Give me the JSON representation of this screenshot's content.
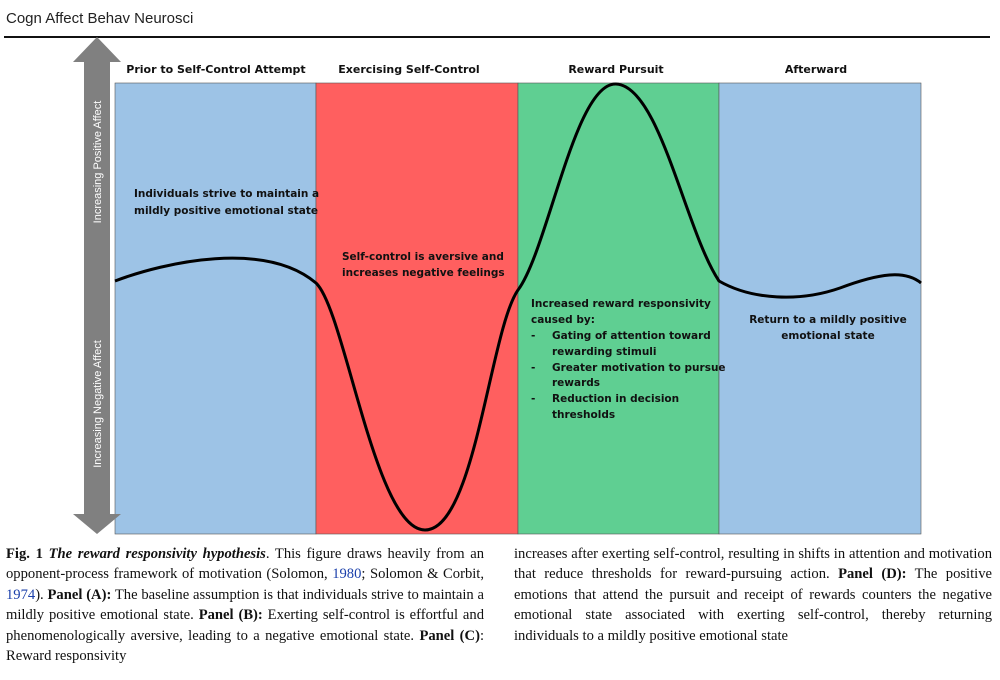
{
  "header": {
    "journal": "Cogn Affect Behav Neurosci"
  },
  "figure": {
    "axis": {
      "positive": "Increasing Positive Affect",
      "negative": "Increasing Negative Affect"
    },
    "panels": [
      {
        "title": "Prior to Self-Control Attempt",
        "color": "#9dc3e6",
        "text": [
          "Individuals strive to maintain a",
          "mildly positive emotional state"
        ]
      },
      {
        "title": "Exercising Self-Control",
        "color": "#ff5f5f",
        "text": [
          "Self-control is aversive and",
          "increases negative feelings"
        ]
      },
      {
        "title": "Reward Pursuit",
        "color": "#5fcf92",
        "text": [
          "Increased reward responsivity",
          "caused by:"
        ],
        "bullets": [
          [
            "Gating of attention toward",
            "rewarding stimuli"
          ],
          [
            "Greater motivation to pursue",
            "rewards"
          ],
          [
            "Reduction in decision",
            "thresholds"
          ]
        ]
      },
      {
        "title": "Afterward",
        "color": "#9dc3e6",
        "text": [
          "Return to a mildly positive",
          "emotional state"
        ]
      }
    ]
  },
  "caption": {
    "fig_label": "Fig. 1",
    "fig_title": "The reward responsivity hypothesis",
    "p1": ". This figure draws heavily from an opponent-process framework of motivation (Solomon, ",
    "c1": "1980",
    "p2": "; Solomon & Corbit, ",
    "c2": "1974",
    "p3": "). ",
    "panel_a_label": "Panel (A):",
    "panel_a_text": " The baseline assumption is that individuals strive to maintain a mildly positive emotional state. ",
    "panel_b_label": "Panel (B):",
    "panel_b_text": " Exerting self-control is effortful and phenomenologically aversive, leading to a negative emotional state. ",
    "panel_c_label": "Panel (C)",
    "panel_c_text": ": Reward responsivity increases after exerting self-control, resulting in shifts in attention and motivation that reduce thresholds for reward-pursuing action. ",
    "panel_d_label": "Panel (D):",
    "panel_d_text": " The positive emotions that attend the pursuit and receipt of rewards counters the negative emotional state associated with exerting self-control, thereby returning individuals to a mildly positive emotional state"
  }
}
